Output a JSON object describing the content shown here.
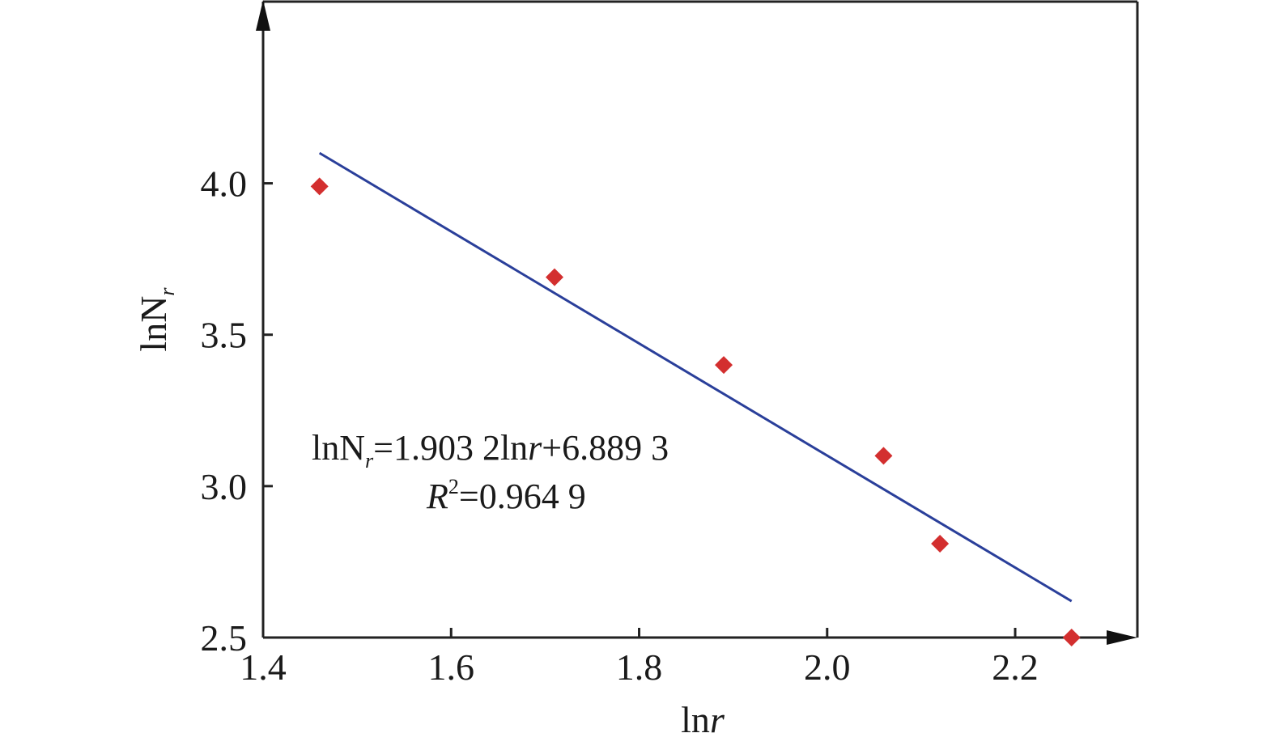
{
  "chart_data": {
    "type": "scatter",
    "title": "",
    "xlabel": {
      "base": "ln",
      "var": "r"
    },
    "ylabel": {
      "base": "lnN",
      "sub": "r"
    },
    "xlim": [
      1.4,
      2.33
    ],
    "ylim": [
      2.5,
      4.6
    ],
    "x_ticks": [
      1.4,
      1.6,
      1.8,
      2.0,
      2.2
    ],
    "x_tick_labels": [
      "1.4",
      "1.6",
      "1.8",
      "2.0",
      "2.2"
    ],
    "y_ticks": [
      2.5,
      3.0,
      3.5,
      4.0
    ],
    "y_tick_labels": [
      "2.5",
      "3.0",
      "3.5",
      "4.0"
    ],
    "grid": false,
    "series": [
      {
        "marker": "diamond",
        "color": "#d32f2f",
        "points": [
          {
            "x": 1.46,
            "y": 3.99
          },
          {
            "x": 1.71,
            "y": 3.69
          },
          {
            "x": 1.89,
            "y": 3.4
          },
          {
            "x": 2.06,
            "y": 3.1
          },
          {
            "x": 2.12,
            "y": 2.81
          },
          {
            "x": 2.26,
            "y": 2.5
          }
        ]
      }
    ],
    "fit_line": {
      "color": "#2a3f9a",
      "from": {
        "x": 1.46,
        "y": 4.1
      },
      "to": {
        "x": 2.26,
        "y": 2.62
      }
    },
    "annotation": {
      "eq_parts": [
        "lnN",
        "r",
        "=1.903 2ln",
        "r",
        "+6.889 3"
      ],
      "r2_parts": [
        "R",
        "2",
        "=0.964 9"
      ]
    }
  }
}
